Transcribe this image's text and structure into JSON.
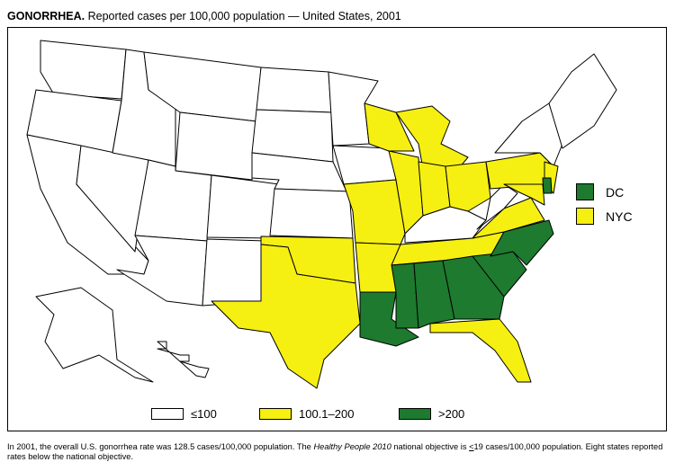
{
  "title": {
    "bold": "GONORRHEA.",
    "rest": "Reported cases per 100,000 population — United States, 2001"
  },
  "colors": {
    "low": "#ffffff",
    "mid": "#f6ef12",
    "high": "#1d7a2e",
    "border": "#000000"
  },
  "legend": [
    {
      "key": "low",
      "label": "≤100"
    },
    {
      "key": "mid",
      "label": "100.1–200"
    },
    {
      "key": "high",
      "label": ">200"
    }
  ],
  "side_legend": [
    {
      "key": "high",
      "label": "DC"
    },
    {
      "key": "mid",
      "label": "NYC"
    }
  ],
  "states": {
    "WA": "low",
    "OR": "low",
    "CA": "low",
    "NV": "low",
    "ID": "low",
    "MT": "low",
    "WY": "low",
    "UT": "low",
    "CO": "low",
    "AZ": "low",
    "NM": "low",
    "ND": "low",
    "SD": "low",
    "NE": "low",
    "KS": "low",
    "OK": "mid",
    "TX": "mid",
    "MN": "low",
    "IA": "low",
    "MO": "mid",
    "AR": "mid",
    "LA": "high",
    "WI": "mid",
    "IL": "mid",
    "MI": "mid",
    "IN": "mid",
    "OH": "mid",
    "KY": "low",
    "TN": "mid",
    "MS": "high",
    "AL": "high",
    "GA": "high",
    "FL": "mid",
    "SC": "high",
    "NC": "high",
    "VA": "mid",
    "WV": "low",
    "PA": "mid",
    "NY": "low",
    "NJ": "mid",
    "MD": "mid",
    "DE": "high",
    "NE_REGION": "low",
    "AK": "low",
    "HI": "low"
  },
  "footnote": {
    "part1": "In 2001, the overall U.S. gonorrhea rate was 128.5 cases/100,000 population. The ",
    "italic": "Healthy People 2010",
    "part2": " national objective is ",
    "le": "<",
    "part3": "19 cases/100,000 population. Eight states reported rates below the national objective."
  }
}
